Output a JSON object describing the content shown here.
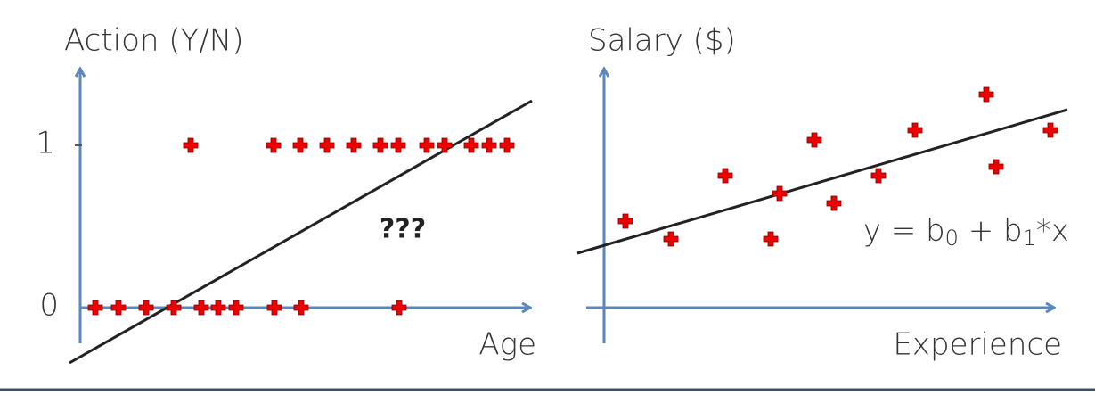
{
  "left": {
    "y_label": "Action (Y/N)",
    "tick_high": "1",
    "tick_low": "0",
    "x_label": "Age",
    "note": "???"
  },
  "right": {
    "y_label": "Salary ($)",
    "x_label": "Experience",
    "equation": {
      "a": "y = b",
      "sub0": "0",
      "b": " + b",
      "sub1": "1",
      "c": "*x"
    }
  }
}
